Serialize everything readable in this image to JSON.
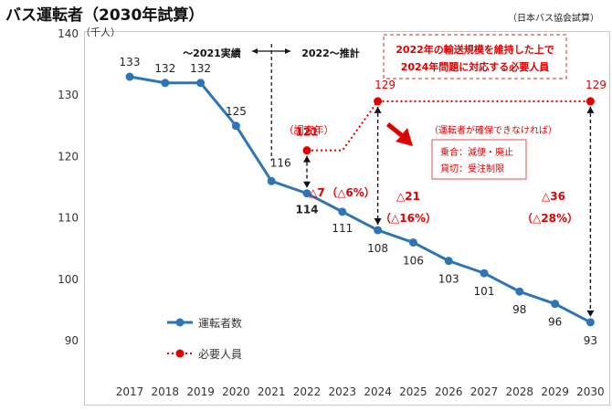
{
  "title": "バス運転者（2030年試算）",
  "source": "（日本バス協会試算）",
  "chart_data": {
    "type": "line",
    "y_unit_label": "（千人）",
    "ylim": [
      90,
      140
    ],
    "yticks": [
      90,
      100,
      110,
      120,
      130,
      140
    ],
    "categories": [
      "2017",
      "2018",
      "2019",
      "2020",
      "2021",
      "2022",
      "2023",
      "2024",
      "2025",
      "2026",
      "2027",
      "2028",
      "2029",
      "2030"
    ],
    "series": [
      {
        "name": "運転者数",
        "color": "#2e75b6",
        "values": [
          133,
          132,
          132,
          125,
          116,
          114,
          111,
          108,
          106,
          103,
          101,
          98,
          96,
          93
        ],
        "labels": [
          "133",
          "132",
          "132",
          "125",
          "116",
          "114",
          "111",
          "108",
          "106",
          "103",
          "101",
          "98",
          "96",
          "93"
        ]
      },
      {
        "name": "必要人員",
        "color": "#e00000",
        "style": "dotted",
        "points": [
          [
            "2022",
            121
          ],
          [
            "2023",
            121
          ],
          [
            "2024",
            129
          ],
          [
            "2030",
            129
          ]
        ],
        "labels": [
          "121",
          "129",
          "129"
        ]
      }
    ],
    "period_labels": {
      "actual": "〜2021実績",
      "estimate": "2022〜推計"
    },
    "note_box": {
      "line1": "2022年の輸送規模を維持した上で",
      "line2": "2024年問題に対応する必要人員"
    },
    "survey_label": "（調査年）",
    "condition_box": {
      "title": "（運転者が確保できなければ）",
      "line1": "乗合：減便・廃止",
      "line2": "貸切：受注制限"
    },
    "gaps": [
      {
        "label": "△7",
        "pct": "（△6%）"
      },
      {
        "label": "△21",
        "pct": "（△16%）"
      },
      {
        "label": "△36",
        "pct": "（△28%）"
      }
    ],
    "legend_position": "bottom-left"
  }
}
